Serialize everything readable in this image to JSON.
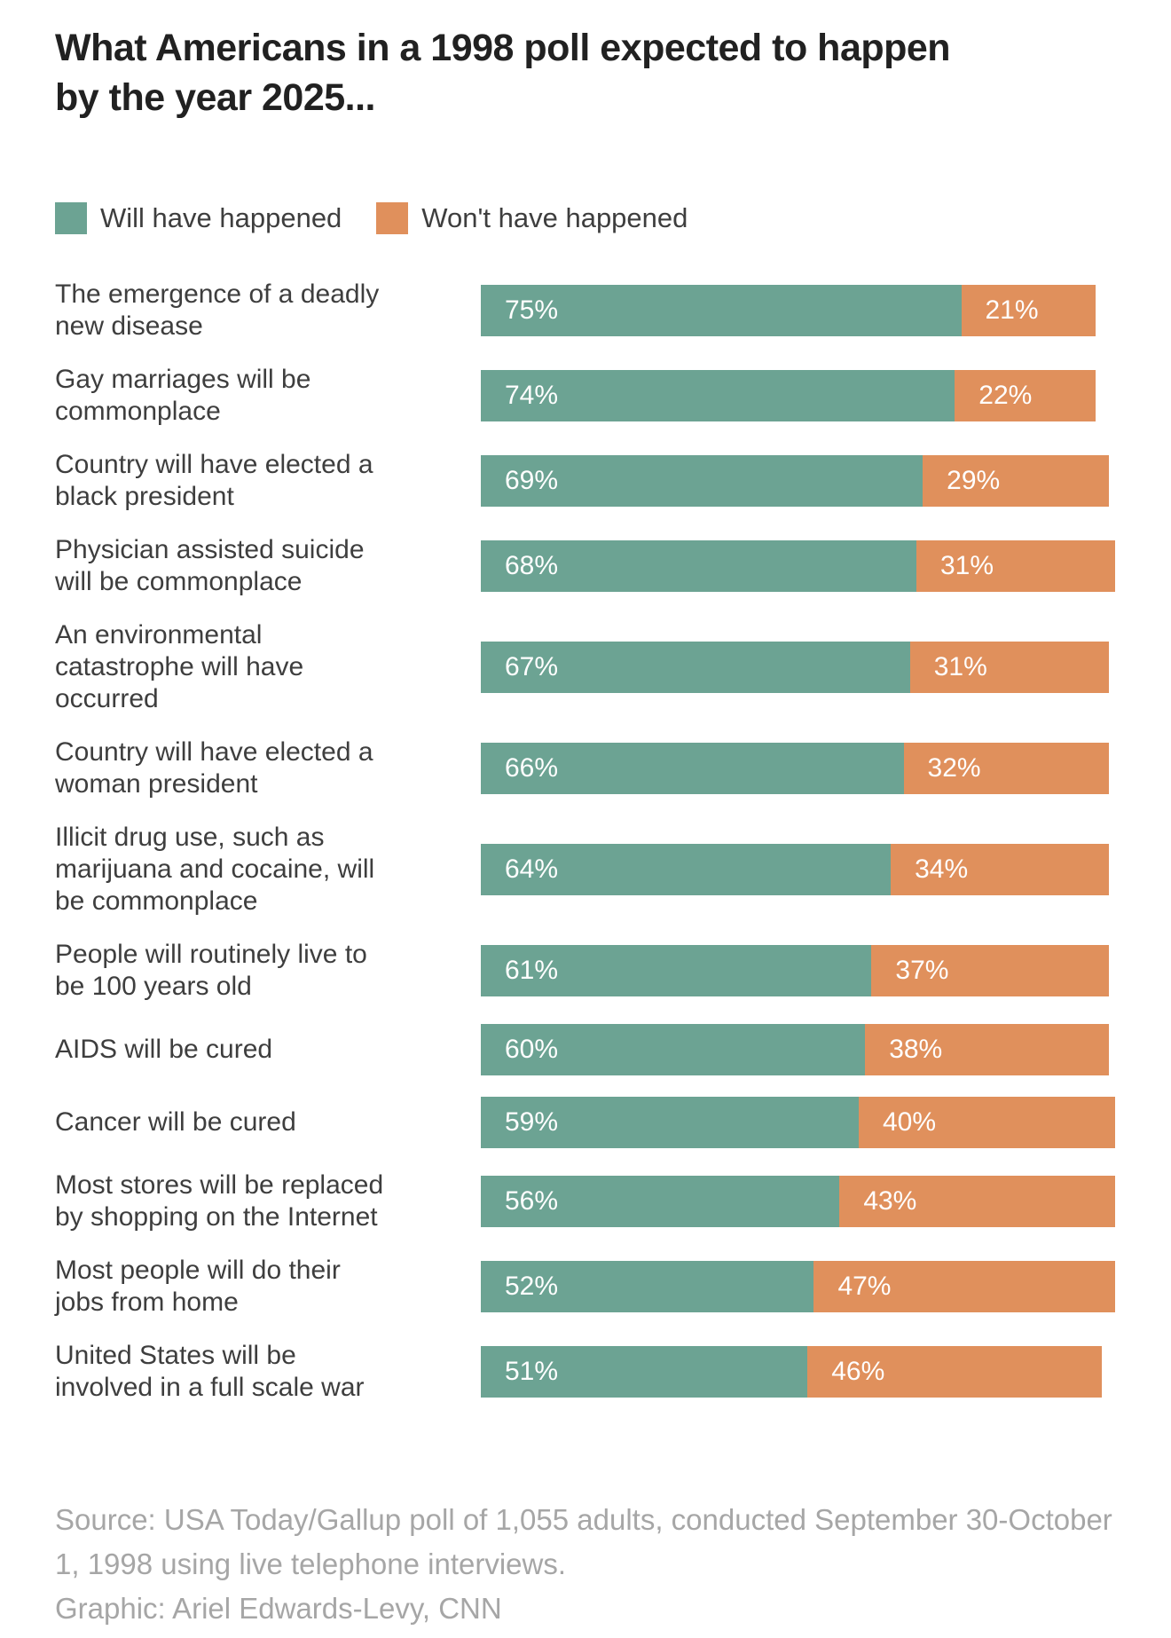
{
  "header": {
    "title": "What Americans in a 1998 poll expected to happen by the year 2025..."
  },
  "legend": {
    "will_label": "Will have happened",
    "wont_label": "Won't have happened"
  },
  "footer": {
    "source": "Source: USA Today/Gallup poll of 1,055 adults, conducted September 30-October 1, 1998 using live telephone interviews.",
    "graphic": "Graphic: Ariel Edwards-Levy, CNN"
  },
  "chart_data": {
    "type": "bar",
    "orientation": "horizontal",
    "stacked": true,
    "title": "What Americans in a 1998 poll expected to happen by the year 2025...",
    "unit": "%",
    "xlim": [
      0,
      100
    ],
    "grid": false,
    "legend_position": "top",
    "colors": {
      "will": "#6ca393",
      "wont": "#e0905c"
    },
    "categories": [
      "The emergence of a deadly new disease",
      "Gay marriages will be commonplace",
      "Country will have elected a black president",
      "Physician assisted suicide will be commonplace",
      "An environmental catastrophe will have occurred",
      "Country will have elected a woman president",
      "Illicit drug use, such as marijuana and cocaine, will be commonplace",
      "People will routinely live to be 100 years old",
      "AIDS will be cured",
      "Cancer will be cured",
      "Most stores will be replaced by shopping on the Internet",
      "Most people will do their jobs from home",
      "United States will be involved in a full scale war"
    ],
    "series": [
      {
        "name": "Will have happened",
        "values": [
          75,
          74,
          69,
          68,
          67,
          66,
          64,
          61,
          60,
          59,
          56,
          52,
          51
        ]
      },
      {
        "name": "Won't have happened",
        "values": [
          21,
          22,
          29,
          31,
          31,
          32,
          34,
          37,
          38,
          40,
          43,
          47,
          46
        ]
      }
    ],
    "rows": [
      {
        "label_lines": [
          "The emergence of a deadly",
          "new disease"
        ],
        "will": 75,
        "wont": 21
      },
      {
        "label_lines": [
          "Gay marriages will be",
          "commonplace"
        ],
        "will": 74,
        "wont": 22
      },
      {
        "label_lines": [
          "Country will have elected a",
          "black president"
        ],
        "will": 69,
        "wont": 29
      },
      {
        "label_lines": [
          "Physician assisted suicide",
          "will be commonplace"
        ],
        "will": 68,
        "wont": 31
      },
      {
        "label_lines": [
          "An environmental",
          "catastrophe will have",
          "occurred"
        ],
        "will": 67,
        "wont": 31
      },
      {
        "label_lines": [
          "Country will have elected a",
          "woman president"
        ],
        "will": 66,
        "wont": 32
      },
      {
        "label_lines": [
          "Illicit drug use, such as",
          "marijuana and cocaine, will",
          "be commonplace"
        ],
        "will": 64,
        "wont": 34
      },
      {
        "label_lines": [
          "People will routinely live to",
          "be 100 years old"
        ],
        "will": 61,
        "wont": 37
      },
      {
        "label_lines": [
          "AIDS will be cured"
        ],
        "will": 60,
        "wont": 38
      },
      {
        "label_lines": [
          "Cancer will be cured"
        ],
        "will": 59,
        "wont": 40
      },
      {
        "label_lines": [
          "Most stores will be replaced",
          "by shopping on the Internet"
        ],
        "will": 56,
        "wont": 43
      },
      {
        "label_lines": [
          "Most people will do their",
          "jobs from home"
        ],
        "will": 52,
        "wont": 47
      },
      {
        "label_lines": [
          "United States will be",
          "involved in a full scale war"
        ],
        "will": 51,
        "wont": 46
      }
    ]
  }
}
